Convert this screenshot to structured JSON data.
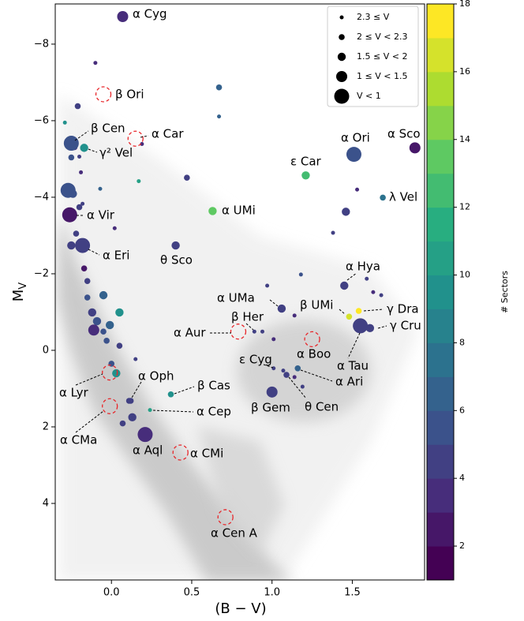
{
  "chart_data": {
    "type": "scatter",
    "xlabel": "(B − V)",
    "ylabel": {
      "main": "M",
      "sub": "V"
    },
    "xlim": [
      -0.35,
      1.95
    ],
    "ylim": [
      -9.05,
      6.0
    ],
    "y_inverted": true,
    "xticks": [
      {
        "value": 0,
        "label": "0.0"
      },
      {
        "value": 0.5,
        "label": "0.5"
      },
      {
        "value": 1,
        "label": "1.0"
      },
      {
        "value": 1.5,
        "label": "1.5"
      }
    ],
    "yticks": [
      {
        "value": -8,
        "label": "−8"
      },
      {
        "value": -6,
        "label": "−6"
      },
      {
        "value": -4,
        "label": "−4"
      },
      {
        "value": -2,
        "label": "−2"
      },
      0,
      2,
      4
    ],
    "colorbar": {
      "label": "# Sectors",
      "lim": [
        1,
        18
      ],
      "ticks": [
        2,
        4,
        6,
        8,
        10,
        12,
        14,
        16,
        18
      ],
      "colormap": "viridis",
      "levels": 17
    },
    "unobserved_color": "#e8262a",
    "legend": {
      "loc": "upper right",
      "entries": [
        {
          "label": "2.3 ≤ V",
          "min": 2.3
        },
        {
          "label": "2 ≤ V < 2.3",
          "min": 2,
          "max": 2.3
        },
        {
          "label": "1.5 ≤ V < 2",
          "min": 1.5,
          "max": 2
        },
        {
          "label": "1 ≤ V < 1.5",
          "min": 1,
          "max": 1.5
        },
        {
          "label": "V < 1",
          "max": 1
        }
      ]
    },
    "stars": [
      {
        "name": "α Cyg",
        "bv": 0.07,
        "mv": -8.72,
        "v": 1.25,
        "sectors": 3
      },
      {
        "name": "β Ori",
        "bv": -0.05,
        "mv": -6.69,
        "v": 0.13,
        "sectors": null
      },
      {
        "name": "β Cen",
        "bv": -0.25,
        "mv": -5.41,
        "v": 0.61,
        "sectors": 5
      },
      {
        "name": "α Car",
        "bv": 0.15,
        "mv": -5.53,
        "v": -0.74,
        "sectors": null
      },
      {
        "name": "γ² Vel",
        "bv": -0.17,
        "mv": -5.29,
        "v": 1.83,
        "sectors": 9
      },
      {
        "name": "ε Car",
        "bv": 1.21,
        "mv": -4.57,
        "v": 1.86,
        "sectors": 12
      },
      {
        "name": "α Ori",
        "bv": 1.51,
        "mv": -5.12,
        "v": 0.5,
        "sectors": 5
      },
      {
        "name": "α Sco",
        "bv": 1.89,
        "mv": -5.29,
        "v": 1.06,
        "sectors": 2
      },
      {
        "name": "λ Vel",
        "bv": 1.69,
        "mv": -3.99,
        "v": 2.21,
        "sectors": 7
      },
      {
        "name": "α UMi",
        "bv": 0.63,
        "mv": -3.64,
        "v": 1.98,
        "sectors": 13
      },
      {
        "name": "α Vir",
        "bv": -0.26,
        "mv": -3.54,
        "v": 0.97,
        "sectors": 2
      },
      {
        "name": "θ Sco",
        "bv": 0.4,
        "mv": -2.74,
        "v": 1.86,
        "sectors": 4
      },
      {
        "name": "α Eri",
        "bv": -0.18,
        "mv": -2.74,
        "v": 0.46,
        "sectors": 4
      },
      {
        "name": "α Hya",
        "bv": 1.45,
        "mv": -1.69,
        "v": 1.98,
        "sectors": 4
      },
      {
        "name": "α UMa",
        "bv": 1.06,
        "mv": -1.09,
        "v": 1.79,
        "sectors": 4
      },
      {
        "name": "β UMi",
        "bv": 1.48,
        "mv": -0.88,
        "v": 2.08,
        "sectors": 16
      },
      {
        "name": "γ Dra",
        "bv": 1.54,
        "mv": -1.03,
        "v": 2.24,
        "sectors": 17
      },
      {
        "name": "β Her",
        "bv": 0.89,
        "mv": -0.49,
        "v": 2.78,
        "sectors": 4
      },
      {
        "name": "α Aur",
        "bv": 0.79,
        "mv": -0.49,
        "v": 0.08,
        "sectors": null
      },
      {
        "name": "α Tau",
        "bv": 1.55,
        "mv": -0.64,
        "v": 0.85,
        "sectors": 4
      },
      {
        "name": "γ Cru",
        "bv": 1.61,
        "mv": -0.58,
        "v": 1.64,
        "sectors": 4
      },
      {
        "name": "α Boo",
        "bv": 1.25,
        "mv": -0.29,
        "v": -0.05,
        "sectors": null
      },
      {
        "name": "ε Cyg",
        "bv": 1.01,
        "mv": 0.47,
        "v": 2.48,
        "sectors": 4
      },
      {
        "name": "α Ari",
        "bv": 1.16,
        "mv": 0.47,
        "v": 2.0,
        "sectors": 6
      },
      {
        "name": "θ Cen",
        "bv": 1.09,
        "mv": 0.64,
        "v": 2.06,
        "sectors": 4
      },
      {
        "name": "β Gem",
        "bv": 1.0,
        "mv": 1.09,
        "v": 1.14,
        "sectors": 4
      },
      {
        "name": "α Lyr",
        "bv": -0.01,
        "mv": 0.58,
        "v": 0.03,
        "sectors": null
      },
      {
        "name": "α Oph",
        "bv": 0.12,
        "mv": 1.32,
        "v": 2.07,
        "sectors": 4
      },
      {
        "name": "β Cas",
        "bv": 0.37,
        "mv": 1.15,
        "v": 2.27,
        "sectors": 9
      },
      {
        "name": "α Cep",
        "bv": 0.24,
        "mv": 1.56,
        "v": 2.45,
        "sectors": 10
      },
      {
        "name": "α CMa",
        "bv": -0.01,
        "mv": 1.46,
        "v": -1.46,
        "sectors": null
      },
      {
        "name": "α Aql",
        "bv": 0.21,
        "mv": 2.2,
        "v": 0.76,
        "sectors": 3
      },
      {
        "name": "α CMi",
        "bv": 0.43,
        "mv": 2.67,
        "v": 0.34,
        "sectors": null
      },
      {
        "name": "α Cen A",
        "bv": 0.71,
        "mv": 4.36,
        "v": -0.01,
        "sectors": null
      }
    ],
    "other_stars": [
      {
        "bv": -0.1,
        "mv": -7.51,
        "v": 2.5,
        "sectors": 3
      },
      {
        "bv": 0.67,
        "mv": -6.87,
        "v": 2.1,
        "sectors": 6
      },
      {
        "bv": -0.21,
        "mv": -6.38,
        "v": 2.2,
        "sectors": 4
      },
      {
        "bv": -0.29,
        "mv": -5.95,
        "v": 2.5,
        "sectors": 9
      },
      {
        "bv": 0.67,
        "mv": -6.11,
        "v": 2.5,
        "sectors": 6
      },
      {
        "bv": 0.19,
        "mv": -5.39,
        "v": 2.6,
        "sectors": 3
      },
      {
        "bv": -0.23,
        "mv": -5.31,
        "v": 2.0,
        "sectors": 3
      },
      {
        "bv": -0.25,
        "mv": -5.04,
        "v": 2.1,
        "sectors": 5
      },
      {
        "bv": -0.2,
        "mv": -5.06,
        "v": 2.5,
        "sectors": 4
      },
      {
        "bv": -0.19,
        "mv": -4.65,
        "v": 2.5,
        "sectors": 3
      },
      {
        "bv": 0.17,
        "mv": -4.42,
        "v": 2.5,
        "sectors": 10
      },
      {
        "bv": 0.47,
        "mv": -4.51,
        "v": 2.0,
        "sectors": 4
      },
      {
        "bv": -0.07,
        "mv": -4.22,
        "v": 2.5,
        "sectors": 6
      },
      {
        "bv": -0.27,
        "mv": -4.18,
        "v": 0.98,
        "sectors": 5
      },
      {
        "bv": -0.24,
        "mv": -4.09,
        "v": 1.7,
        "sectors": 5
      },
      {
        "bv": -0.18,
        "mv": -3.83,
        "v": 2.5,
        "sectors": 4
      },
      {
        "bv": -0.2,
        "mv": -3.74,
        "v": 2.2,
        "sectors": 4
      },
      {
        "bv": 0.02,
        "mv": -3.19,
        "v": 2.6,
        "sectors": 3
      },
      {
        "bv": -0.22,
        "mv": -3.05,
        "v": 2.2,
        "sectors": 4
      },
      {
        "bv": -0.25,
        "mv": -2.74,
        "v": 1.7,
        "sectors": 4
      },
      {
        "bv": 1.38,
        "mv": -3.07,
        "v": 2.5,
        "sectors": 4
      },
      {
        "bv": 1.46,
        "mv": -3.62,
        "v": 1.8,
        "sectors": 4
      },
      {
        "bv": 1.53,
        "mv": -4.2,
        "v": 2.6,
        "sectors": 3
      },
      {
        "bv": -0.17,
        "mv": -2.14,
        "v": 2.2,
        "sectors": 2
      },
      {
        "bv": -0.15,
        "mv": -1.81,
        "v": 2.2,
        "sectors": 4
      },
      {
        "bv": -0.05,
        "mv": -1.44,
        "v": 1.8,
        "sectors": 6
      },
      {
        "bv": -0.15,
        "mv": -1.38,
        "v": 2.1,
        "sectors": 5
      },
      {
        "bv": 1.18,
        "mv": -1.98,
        "v": 2.5,
        "sectors": 5
      },
      {
        "bv": 1.59,
        "mv": -1.87,
        "v": 2.3,
        "sectors": 4
      },
      {
        "bv": 0.97,
        "mv": -1.69,
        "v": 2.6,
        "sectors": 4
      },
      {
        "bv": 1.63,
        "mv": -1.52,
        "v": 2.5,
        "sectors": 3
      },
      {
        "bv": 1.68,
        "mv": -1.44,
        "v": 2.5,
        "sectors": 4
      },
      {
        "bv": 1.14,
        "mv": -0.91,
        "v": 2.3,
        "sectors": 3
      },
      {
        "bv": 0.05,
        "mv": -0.99,
        "v": 1.8,
        "sectors": 9
      },
      {
        "bv": -0.12,
        "mv": -0.99,
        "v": 1.8,
        "sectors": 4
      },
      {
        "bv": -0.09,
        "mv": -0.76,
        "v": 1.6,
        "sectors": 5
      },
      {
        "bv": -0.01,
        "mv": -0.66,
        "v": 1.7,
        "sectors": 6
      },
      {
        "bv": -0.11,
        "mv": -0.53,
        "v": 1.2,
        "sectors": 3
      },
      {
        "bv": -0.05,
        "mv": -0.49,
        "v": 2.1,
        "sectors": 5
      },
      {
        "bv": 0.94,
        "mv": -0.49,
        "v": 2.5,
        "sectors": 4
      },
      {
        "bv": -0.03,
        "mv": -0.25,
        "v": 2.2,
        "sectors": 5
      },
      {
        "bv": 0.05,
        "mv": -0.12,
        "v": 2.2,
        "sectors": 4
      },
      {
        "bv": 1.01,
        "mv": -0.29,
        "v": 2.5,
        "sectors": 3
      },
      {
        "bv": 0.15,
        "mv": 0.23,
        "v": 2.6,
        "sectors": 4
      },
      {
        "bv": 0.0,
        "mv": 0.35,
        "v": 2.2,
        "sectors": 5
      },
      {
        "bv": 0.03,
        "mv": 0.6,
        "v": 1.9,
        "sectors": 9
      },
      {
        "bv": 1.07,
        "mv": 0.53,
        "v": 2.6,
        "sectors": 4
      },
      {
        "bv": 1.14,
        "mv": 0.7,
        "v": 2.6,
        "sectors": 3
      },
      {
        "bv": 1.19,
        "mv": 0.95,
        "v": 2.6,
        "sectors": 4
      },
      {
        "bv": 0.11,
        "mv": 1.32,
        "v": 2.2,
        "sectors": 4
      },
      {
        "bv": 0.13,
        "mv": 1.75,
        "v": 1.7,
        "sectors": 4
      },
      {
        "bv": 0.07,
        "mv": 1.91,
        "v": 2.2,
        "sectors": 4
      }
    ]
  }
}
